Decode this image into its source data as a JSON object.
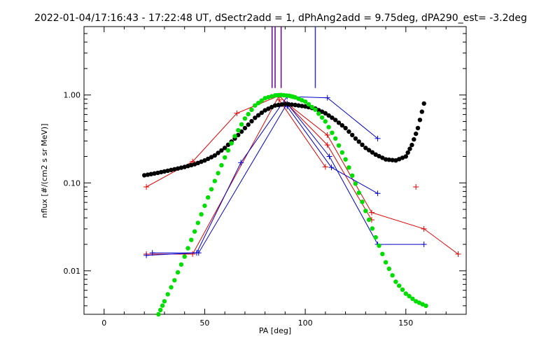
{
  "chart_data": {
    "type": "scatter",
    "title": "2022-01-04/17:16:43 - 17:22:48 UT, dSectr2add = 1, dPhAng2add = 9.75deg, dPA290_est=  -3.2deg",
    "xlabel": "PA [deg]",
    "ylabel": "nflux [#/(cm2 s sr MeV)]",
    "xlim": [
      -10,
      180
    ],
    "ylim": [
      0.0032,
      6.0
    ],
    "yscale": "log",
    "x_ticks": [
      0,
      50,
      100,
      150
    ],
    "x_tick_labels": [
      "0",
      "50",
      "100",
      "150"
    ],
    "y_ticks": [
      0.01,
      0.1,
      1.0
    ],
    "y_tick_labels": [
      "0.01",
      "0.10",
      "1.00"
    ],
    "grid": false,
    "colors": {
      "red": "#dd0000",
      "blue": "#0000cc",
      "black": "#000000",
      "green": "#00dd00",
      "purple": "#660099",
      "marker_line": "#3333aa"
    },
    "vertical_markers": [
      {
        "x": 83.5,
        "color": "#660099"
      },
      {
        "x": 85.0,
        "color": "#660099"
      },
      {
        "x": 88.0,
        "color": "#660099"
      },
      {
        "x": 105.0,
        "color": "#3333aa"
      }
    ],
    "series": [
      {
        "color": "#dd0000",
        "style": "line-plus",
        "x": [
          21,
          44,
          66,
          87,
          91,
          111,
          133,
          159,
          176
        ],
        "y": [
          0.09,
          0.175,
          0.62,
          0.98,
          0.8,
          0.35,
          0.046,
          0.03,
          0.0155
        ]
      },
      {
        "color": "#dd0000",
        "style": "line-plus",
        "x": [
          21,
          44,
          87,
          111,
          133
        ],
        "y": [
          0.0155,
          0.0155,
          0.98,
          0.27,
          0.038
        ]
      },
      {
        "color": "#dd0000",
        "style": "line-plus",
        "x": [
          87,
          110
        ],
        "y": [
          0.88,
          0.152
        ]
      },
      {
        "color": "#dd0000",
        "style": "plus-only",
        "x": [
          155
        ],
        "y": [
          0.09
        ]
      },
      {
        "color": "#0000cc",
        "style": "line-plus",
        "x": [
          24,
          46,
          68,
          91,
          111,
          136
        ],
        "y": [
          0.016,
          0.016,
          0.17,
          0.96,
          0.93,
          0.32
        ]
      },
      {
        "color": "#0000cc",
        "style": "line-plus",
        "x": [
          21,
          47,
          91,
          112,
          136,
          159
        ],
        "y": [
          0.015,
          0.016,
          0.8,
          0.2,
          0.02,
          0.02
        ]
      },
      {
        "color": "#0000cc",
        "style": "line-plus",
        "x": [
          91,
          113,
          136
        ],
        "y": [
          0.74,
          0.15,
          0.076
        ]
      },
      {
        "color": "#000000",
        "style": "dots",
        "x": [
          20,
          25,
          30,
          35,
          40,
          45,
          50,
          55,
          60,
          65,
          70,
          75,
          80,
          85,
          90,
          95,
          100,
          105,
          110,
          115,
          120,
          125,
          130,
          135,
          140,
          145,
          150,
          153,
          156,
          159
        ],
        "y": [
          0.122,
          0.128,
          0.135,
          0.143,
          0.152,
          0.163,
          0.18,
          0.205,
          0.25,
          0.32,
          0.42,
          0.55,
          0.67,
          0.76,
          0.79,
          0.77,
          0.74,
          0.7,
          0.62,
          0.52,
          0.42,
          0.32,
          0.25,
          0.21,
          0.185,
          0.18,
          0.2,
          0.27,
          0.42,
          0.8
        ]
      },
      {
        "color": "#00dd00",
        "style": "dots",
        "x": [
          27,
          30,
          35,
          40,
          45,
          50,
          55,
          60,
          65,
          70,
          75,
          80,
          85,
          88,
          92,
          95,
          100,
          105,
          110,
          115,
          120,
          125,
          130,
          135,
          140,
          145,
          150,
          155,
          160
        ],
        "y": [
          0.0032,
          0.0045,
          0.0078,
          0.0145,
          0.028,
          0.055,
          0.105,
          0.195,
          0.34,
          0.54,
          0.76,
          0.92,
          0.99,
          1.0,
          0.98,
          0.94,
          0.84,
          0.68,
          0.5,
          0.32,
          0.185,
          0.098,
          0.048,
          0.024,
          0.0125,
          0.0075,
          0.0055,
          0.0045,
          0.004
        ]
      }
    ]
  }
}
